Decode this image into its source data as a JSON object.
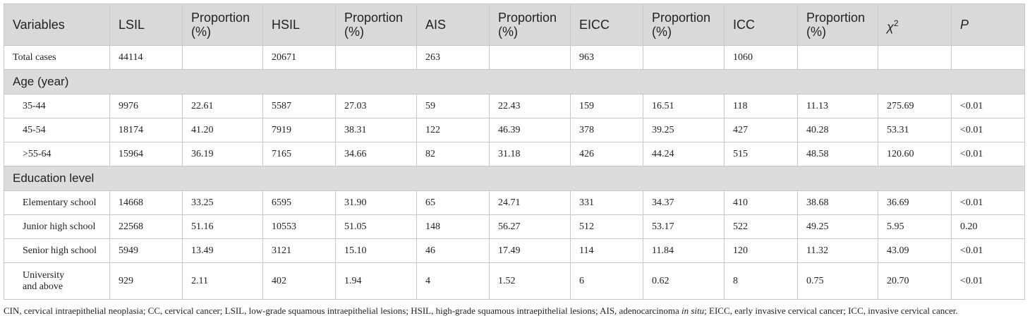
{
  "table": {
    "headers": [
      "Variables",
      "LSIL",
      "Proportion (%)",
      "HSIL",
      "Proportion (%)",
      "AIS",
      "Proportion (%)",
      "EICC",
      "Proportion (%)",
      "ICC",
      "Proportion (%)",
      {
        "base": "χ",
        "sup": "2"
      },
      "P"
    ],
    "total_row": [
      "Total cases",
      "44114",
      null,
      "20671",
      null,
      "263",
      null,
      "963",
      null,
      "1060",
      null,
      null,
      null
    ],
    "sections": [
      {
        "title": "Age (year)",
        "rows": [
          [
            "35-44",
            "9976",
            "22.61",
            "5587",
            "27.03",
            "59",
            "22.43",
            "159",
            "16.51",
            "118",
            "11.13",
            "275.69",
            "<0.01"
          ],
          [
            "45-54",
            "18174",
            "41.20",
            "7919",
            "38.31",
            "122",
            "46.39",
            "378",
            "39.25",
            "427",
            "40.28",
            "53.31",
            "<0.01"
          ],
          [
            ">55-64",
            "15964",
            "36.19",
            "7165",
            "34.66",
            "82",
            "31.18",
            "426",
            "44.24",
            "515",
            "48.58",
            "120.60",
            "<0.01"
          ]
        ]
      },
      {
        "title": "Education level",
        "rows": [
          [
            "Elementary school",
            "14668",
            "33.25",
            "6595",
            "31.90",
            "65",
            "24.71",
            "331",
            "34.37",
            "410",
            "38.68",
            "36.69",
            "<0.01"
          ],
          [
            "Junior high school",
            "22568",
            "51.16",
            "10553",
            "51.05",
            "148",
            "56.27",
            "512",
            "53.17",
            "522",
            "49.25",
            "5.95",
            "0.20"
          ],
          [
            "Senior high school",
            "5949",
            "13.49",
            "3121",
            "15.10",
            "46",
            "17.49",
            "114",
            "11.84",
            "120",
            "11.32",
            "43.09",
            "<0.01"
          ],
          [
            "University\nand above",
            "929",
            "2.11",
            "402",
            "1.94",
            "4",
            "1.52",
            "6",
            "0.62",
            "8",
            "0.75",
            "20.70",
            "<0.01"
          ]
        ]
      }
    ]
  },
  "footnote": {
    "before": "CIN, cervical intraepithelial neoplasia; CC, cervical cancer; LSIL, low-grade squamous intraepithelial lesions; HSIL, high-grade squamous intraepithelial lesions; AIS, adenocarcinoma ",
    "italic": "in situ",
    "after": "; EICC, early invasive cervical cancer; ICC, invasive cervical cancer."
  }
}
